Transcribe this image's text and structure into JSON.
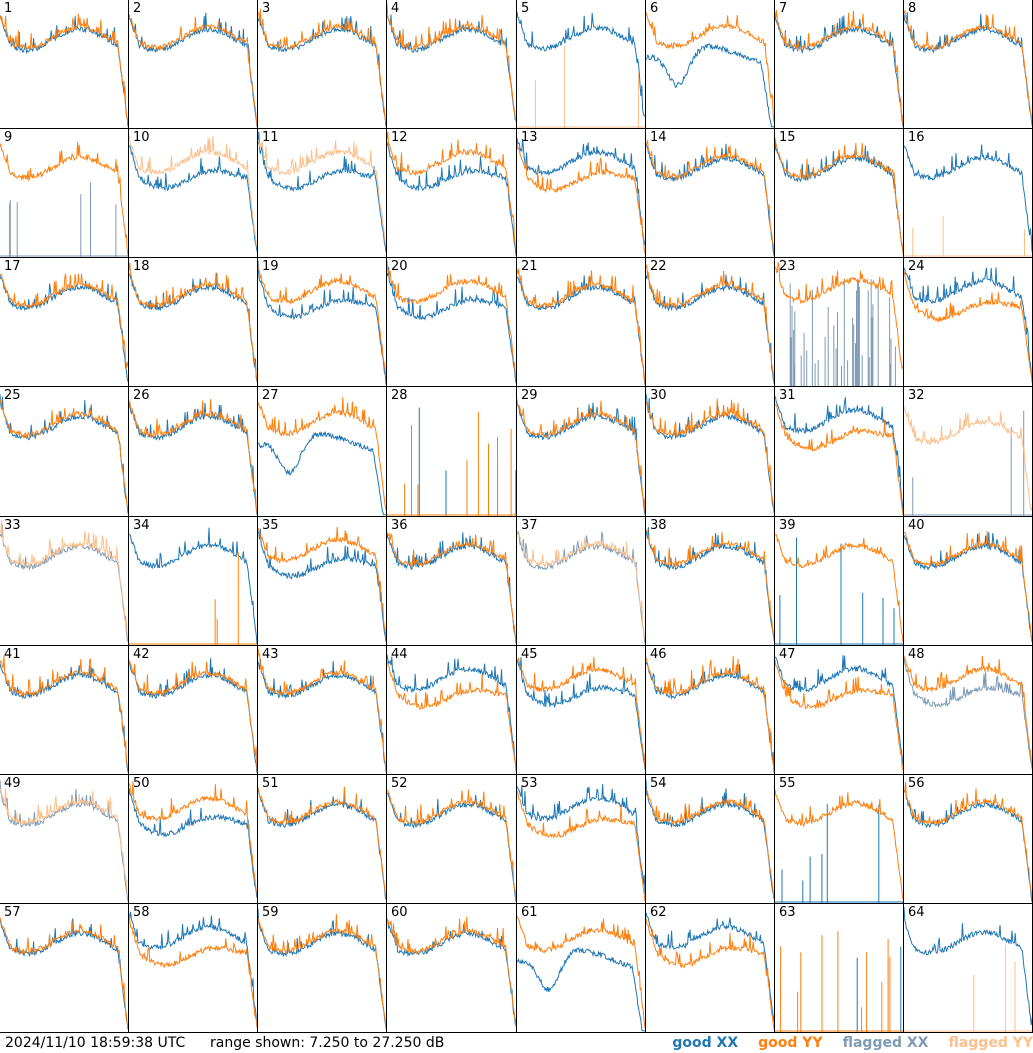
{
  "chart_data": {
    "type": "line",
    "grid": {
      "rows": 8,
      "cols": 8
    },
    "ylim": [
      7.25,
      27.25
    ],
    "y_unit": "dB",
    "panels": [
      {
        "label": "1",
        "xx": "good",
        "yy": "good",
        "shape": "wiggly"
      },
      {
        "label": "2",
        "xx": "good",
        "yy": "good",
        "shape": "wiggly"
      },
      {
        "label": "3",
        "xx": "good",
        "yy": "good",
        "shape": "wiggly"
      },
      {
        "label": "4",
        "xx": "good",
        "yy": "good",
        "shape": "wiggly"
      },
      {
        "label": "5",
        "xx": "good",
        "yy": "flagged",
        "shape": "yy_dead"
      },
      {
        "label": "6",
        "xx": "good",
        "yy": "good",
        "shape": "xx_dip"
      },
      {
        "label": "7",
        "xx": "good",
        "yy": "good",
        "shape": "wiggly"
      },
      {
        "label": "8",
        "xx": "good",
        "yy": "good",
        "shape": "wiggly"
      },
      {
        "label": "9",
        "xx": "flagged",
        "yy": "good",
        "shape": "xx_dead"
      },
      {
        "label": "10",
        "xx": "good",
        "yy": "flagged",
        "shape": "split"
      },
      {
        "label": "11",
        "xx": "good",
        "yy": "flagged",
        "shape": "split"
      },
      {
        "label": "12",
        "xx": "good",
        "yy": "good",
        "shape": "split_xx_low"
      },
      {
        "label": "13",
        "xx": "good",
        "yy": "good",
        "shape": "split_yy_low"
      },
      {
        "label": "14",
        "xx": "good",
        "yy": "good",
        "shape": "wiggly"
      },
      {
        "label": "15",
        "xx": "good",
        "yy": "good",
        "shape": "wiggly"
      },
      {
        "label": "16",
        "xx": "good",
        "yy": "flagged",
        "shape": "yy_dead"
      },
      {
        "label": "17",
        "xx": "good",
        "yy": "good",
        "shape": "wiggly"
      },
      {
        "label": "18",
        "xx": "good",
        "yy": "good",
        "shape": "wiggly"
      },
      {
        "label": "19",
        "xx": "good",
        "yy": "good",
        "shape": "split_xx_low"
      },
      {
        "label": "20",
        "xx": "good",
        "yy": "good",
        "shape": "split"
      },
      {
        "label": "21",
        "xx": "good",
        "yy": "good",
        "shape": "wiggly"
      },
      {
        "label": "22",
        "xx": "good",
        "yy": "good",
        "shape": "wiggly"
      },
      {
        "label": "23",
        "xx": "flagged",
        "yy": "good",
        "shape": "xx_noisy"
      },
      {
        "label": "24",
        "xx": "good",
        "yy": "good",
        "shape": "split_yy_low"
      },
      {
        "label": "25",
        "xx": "good",
        "yy": "good",
        "shape": "wiggly"
      },
      {
        "label": "26",
        "xx": "good",
        "yy": "good",
        "shape": "wiggly"
      },
      {
        "label": "27",
        "xx": "good",
        "yy": "good",
        "shape": "xx_dip"
      },
      {
        "label": "28",
        "xx": "good",
        "yy": "good",
        "shape": "both_dead"
      },
      {
        "label": "29",
        "xx": "good",
        "yy": "good",
        "shape": "wiggly"
      },
      {
        "label": "30",
        "xx": "good",
        "yy": "good",
        "shape": "wiggly"
      },
      {
        "label": "31",
        "xx": "good",
        "yy": "good",
        "shape": "split_yy_low"
      },
      {
        "label": "32",
        "xx": "flagged",
        "yy": "flagged",
        "shape": "xx_dead_yy_flag"
      },
      {
        "label": "33",
        "xx": "flagged",
        "yy": "flagged",
        "shape": "wiggly"
      },
      {
        "label": "34",
        "xx": "good",
        "yy": "good",
        "shape": "yy_dead"
      },
      {
        "label": "35",
        "xx": "good",
        "yy": "good",
        "shape": "split_xx_low"
      },
      {
        "label": "36",
        "xx": "good",
        "yy": "good",
        "shape": "wiggly"
      },
      {
        "label": "37",
        "xx": "flagged",
        "yy": "flagged",
        "shape": "wiggly"
      },
      {
        "label": "38",
        "xx": "good",
        "yy": "good",
        "shape": "wiggly"
      },
      {
        "label": "39",
        "xx": "good",
        "yy": "good",
        "shape": "xx_dead"
      },
      {
        "label": "40",
        "xx": "good",
        "yy": "good",
        "shape": "wiggly"
      },
      {
        "label": "41",
        "xx": "good",
        "yy": "good",
        "shape": "wiggly"
      },
      {
        "label": "42",
        "xx": "good",
        "yy": "good",
        "shape": "wiggly"
      },
      {
        "label": "43",
        "xx": "good",
        "yy": "good",
        "shape": "wiggly"
      },
      {
        "label": "44",
        "xx": "good",
        "yy": "good",
        "shape": "split_yy_low"
      },
      {
        "label": "45",
        "xx": "good",
        "yy": "good",
        "shape": "split_xx_low"
      },
      {
        "label": "46",
        "xx": "good",
        "yy": "good",
        "shape": "wiggly"
      },
      {
        "label": "47",
        "xx": "good",
        "yy": "good",
        "shape": "split_yy_low"
      },
      {
        "label": "48",
        "xx": "flagged",
        "yy": "good",
        "shape": "split_xx_low"
      },
      {
        "label": "49",
        "xx": "flagged",
        "yy": "flagged",
        "shape": "wiggly"
      },
      {
        "label": "50",
        "xx": "good",
        "yy": "good",
        "shape": "split_xx_low"
      },
      {
        "label": "51",
        "xx": "good",
        "yy": "good",
        "shape": "wiggly"
      },
      {
        "label": "52",
        "xx": "good",
        "yy": "good",
        "shape": "wiggly"
      },
      {
        "label": "53",
        "xx": "good",
        "yy": "good",
        "shape": "split_yy_low"
      },
      {
        "label": "54",
        "xx": "good",
        "yy": "good",
        "shape": "wiggly"
      },
      {
        "label": "55",
        "xx": "good",
        "yy": "good",
        "shape": "xx_dead"
      },
      {
        "label": "56",
        "xx": "good",
        "yy": "good",
        "shape": "wiggly"
      },
      {
        "label": "57",
        "xx": "good",
        "yy": "good",
        "shape": "wiggly"
      },
      {
        "label": "58",
        "xx": "good",
        "yy": "good",
        "shape": "split_yy_low"
      },
      {
        "label": "59",
        "xx": "good",
        "yy": "good",
        "shape": "wiggly"
      },
      {
        "label": "60",
        "xx": "good",
        "yy": "good",
        "shape": "wiggly"
      },
      {
        "label": "61",
        "xx": "good",
        "yy": "good",
        "shape": "xx_dip"
      },
      {
        "label": "62",
        "xx": "good",
        "yy": "good",
        "shape": "split_yy_low"
      },
      {
        "label": "63",
        "xx": "good",
        "yy": "good",
        "shape": "both_dead"
      },
      {
        "label": "64",
        "xx": "good",
        "yy": "flagged",
        "shape": "yy_dead"
      }
    ],
    "legend": [
      {
        "label": "good XX",
        "color": "#1f77b4"
      },
      {
        "label": "good YY",
        "color": "#ff7f0e"
      },
      {
        "label": "flagged XX",
        "color": "#7f9bb5"
      },
      {
        "label": "flagged YY",
        "color": "#fdbf8c"
      }
    ]
  },
  "footer": {
    "timestamp": "2024/11/10 18:59:38 UTC",
    "range": "range shown: 7.250 to 27.250 dB"
  }
}
